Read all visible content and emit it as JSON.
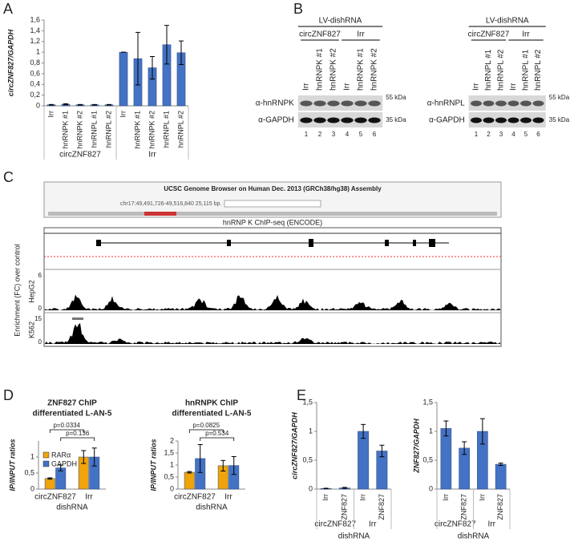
{
  "panel_letters": [
    "A",
    "B",
    "C",
    "D",
    "E"
  ],
  "chart_data": [
    {
      "type": "bar",
      "ylabel": "circZNF827/GAPDH",
      "color": "#4472c4",
      "categories": [
        "Irr",
        "hnRNPK #1",
        "hnRNPK #2",
        "hnRNPL #1",
        "hnRNPL #2",
        "Irr",
        "hnRNPK #1",
        "hnRNPK #2",
        "hnRNPL #1",
        "hnRNPL #2"
      ],
      "groups": [
        "circZNF827",
        "Irr"
      ],
      "values": [
        0.02,
        0.03,
        0.02,
        0.02,
        0.02,
        1.0,
        0.88,
        0.71,
        1.14,
        0.99
      ],
      "errors": [
        0.005,
        0.01,
        0.005,
        0.005,
        0.005,
        0,
        0.49,
        0.21,
        0.36,
        0.22
      ],
      "ylim": [
        0,
        1.6
      ],
      "yticks": [
        0,
        {
          "value": 0.2,
          "label": "0,2"
        },
        {
          "value": 0.4,
          "label": "0,4"
        },
        {
          "value": 0.6,
          "label": "0,6"
        },
        {
          "value": 0.8,
          "label": "0,8"
        },
        1,
        {
          "value": 1.2,
          "label": "1,2"
        },
        {
          "value": 1.4,
          "label": "1,4"
        },
        {
          "value": 1.6,
          "label": "1,6"
        }
      ]
    },
    {
      "type": "bar",
      "title": "ZNF827 ChIP",
      "subtitle": "differentiated L-AN-5",
      "ylabel": "IP/INPUT ratios",
      "xlabel": "dishRNA",
      "categories": [
        "circZNF827",
        "Irr"
      ],
      "series": [
        {
          "name": "RARα",
          "color": "#f0a30a",
          "values": [
            0.33,
            1.0
          ],
          "errors": [
            0.02,
            0.2
          ]
        },
        {
          "name": "GAPDH",
          "color": "#4472c4",
          "values": [
            0.66,
            1.0
          ],
          "errors": [
            0.09,
            0.28
          ]
        }
      ],
      "annotations": [
        "p=0.0334",
        "p=0.136"
      ],
      "ylim": [
        0,
        1.5
      ],
      "yticks": [
        0,
        {
          "value": 0.5,
          "label": "0,5"
        },
        1
      ]
    },
    {
      "type": "bar",
      "title": "hnRNPK ChIP",
      "subtitle": "differentiated L-AN-5",
      "ylabel": "IP/INPUT ratios",
      "xlabel": "dishRNA",
      "categories": [
        "circZNF827",
        "Irr"
      ],
      "series": [
        {
          "color": "#f0a30a",
          "values": [
            0.7,
            0.97
          ],
          "errors": [
            0.03,
            0.22
          ]
        },
        {
          "color": "#4472c4",
          "values": [
            1.27,
            0.98
          ],
          "errors": [
            0.58,
            0.37
          ]
        }
      ],
      "annotations": [
        "p=0.0825",
        "p=0.534"
      ],
      "ylim": [
        0,
        2
      ],
      "yticks": [
        0,
        {
          "value": 0.5,
          "label": "0,5"
        },
        1,
        {
          "value": 1.5,
          "label": "1,5"
        },
        2
      ]
    },
    {
      "type": "bar",
      "ylabel": "circZNF827/GAPDH",
      "xlabel": "dishRNA",
      "color": "#4472c4",
      "categories": [
        "Irr",
        "ZNF827",
        "Irr",
        "ZNF827"
      ],
      "groups": [
        "circZNF827",
        "Irr"
      ],
      "values": [
        0.01,
        0.02,
        1.0,
        0.66
      ],
      "errors": [
        0.005,
        0.01,
        0.12,
        0.1
      ],
      "ylim": [
        0,
        1.5
      ],
      "yticks": [
        0,
        {
          "value": 0.5,
          "label": "0,5"
        },
        1,
        {
          "value": 1.5,
          "label": "1,5"
        }
      ]
    },
    {
      "type": "bar",
      "ylabel": "ZNF827/GAPDH",
      "xlabel": "dishRNA",
      "color": "#4472c4",
      "categories": [
        "Irr",
        "ZNF827",
        "Irr",
        "ZNF827"
      ],
      "groups": [
        "circZNF827",
        "Irr"
      ],
      "values": [
        1.05,
        0.71,
        1.0,
        0.43
      ],
      "errors": [
        0.13,
        0.11,
        0.22,
        0.02
      ],
      "ylim": [
        0,
        1.5
      ],
      "yticks": [
        0,
        {
          "value": 0.5,
          "label": "0,5"
        },
        1,
        {
          "value": 1.5,
          "label": "1,5"
        }
      ]
    }
  ],
  "blots": [
    {
      "header": "LV-dishRNA",
      "groups": [
        "circZNF827",
        "Irr"
      ],
      "lanes": [
        "Irr",
        "hnRNPK #1",
        "hnRNPK #2",
        "Irr",
        "hnRNPK #1",
        "hnRNPK #2"
      ],
      "lane_numbers": [
        "1",
        "2",
        "3",
        "4",
        "5",
        "6"
      ],
      "rows": [
        {
          "antibody": "α-hnRNPK",
          "marker": "55 kDa"
        },
        {
          "antibody": "α-GAPDH",
          "marker": "35 kDa"
        }
      ]
    },
    {
      "header": "LV-dishRNA",
      "groups": [
        "circZNF827",
        "Irr"
      ],
      "lanes": [
        "Irr",
        "hnRNPL #1",
        "hnRNPL #2",
        "Irr",
        "hnRNPL #1",
        "hnRNPL #2"
      ],
      "lane_numbers": [
        "1",
        "2",
        "3",
        "4",
        "5",
        "6"
      ],
      "rows": [
        {
          "antibody": "α-hnRNPL",
          "marker": "55 kDa"
        },
        {
          "antibody": "α-GAPDH",
          "marker": "35 kDa"
        }
      ]
    }
  ],
  "browser": {
    "title": "UCSC Genome Browser on Human Dec. 2013 (GRCh38/hg38) Assembly",
    "position": "chr17:49,491,726-49,516,840  25,115 bp.",
    "track_title": "hnRNP K ChIP-seq (ENCODE)",
    "ylabel": "Enrichment (FC) over control",
    "tracks": [
      {
        "name": "HepG2",
        "ticks": [
          "6",
          "0"
        ]
      },
      {
        "name": "K562",
        "ticks": [
          "15",
          "0"
        ]
      }
    ]
  }
}
